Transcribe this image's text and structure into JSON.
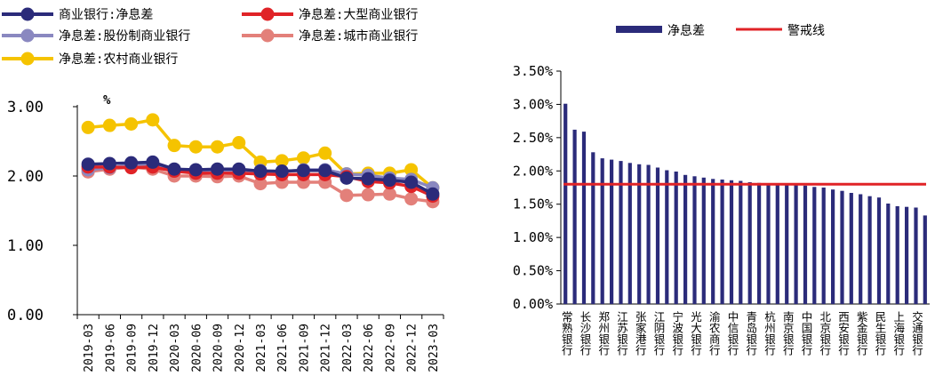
{
  "chart_data": [
    {
      "type": "line",
      "ylabel": "%",
      "ylim": [
        0,
        3
      ],
      "yticks": [
        "0.00",
        "1.00",
        "2.00",
        "3.00"
      ],
      "legend_position": "top",
      "grid": false,
      "x": [
        "2019-03",
        "2019-06",
        "2019-09",
        "2019-12",
        "2020-03",
        "2020-06",
        "2020-09",
        "2020-12",
        "2021-03",
        "2021-06",
        "2021-09",
        "2021-12",
        "2022-03",
        "2022-06",
        "2022-09",
        "2022-12",
        "2023-03"
      ],
      "series": [
        {
          "name": "商业银行:净息差",
          "color": "#2b2b7a",
          "values": [
            2.17,
            2.18,
            2.19,
            2.2,
            2.1,
            2.09,
            2.1,
            2.1,
            2.07,
            2.07,
            2.08,
            2.08,
            1.97,
            1.96,
            1.94,
            1.91,
            1.74
          ]
        },
        {
          "name": "净息差:大型商业银行",
          "color": "#e02327",
          "values": [
            2.13,
            2.13,
            2.12,
            2.13,
            2.07,
            2.04,
            2.04,
            2.04,
            2.03,
            2.02,
            2.02,
            2.02,
            1.99,
            1.92,
            1.9,
            1.85,
            1.71
          ]
        },
        {
          "name": "净息差:股份制商业银行",
          "color": "#8a88c0",
          "values": [
            2.09,
            2.12,
            2.15,
            2.16,
            2.09,
            2.07,
            2.08,
            2.07,
            2.08,
            2.06,
            2.09,
            2.09,
            2.03,
            2.01,
            1.97,
            1.95,
            1.83
          ]
        },
        {
          "name": "净息差:城市商业银行",
          "color": "#e3807a",
          "values": [
            2.06,
            2.1,
            2.13,
            2.1,
            2.0,
            2.0,
            1.99,
            2.0,
            1.89,
            1.91,
            1.91,
            1.91,
            1.72,
            1.73,
            1.74,
            1.67,
            1.63
          ]
        },
        {
          "name": "净息差:农村商业银行",
          "color": "#f5c300",
          "values": [
            2.7,
            2.73,
            2.75,
            2.81,
            2.44,
            2.42,
            2.42,
            2.48,
            2.2,
            2.22,
            2.26,
            2.33,
            2.03,
            2.04,
            2.04,
            2.09,
            1.83
          ]
        }
      ]
    },
    {
      "type": "bar",
      "ylim": [
        0,
        3.5
      ],
      "yticks": [
        "0.00%",
        "0.50%",
        "1.00%",
        "1.50%",
        "2.00%",
        "2.50%",
        "3.00%",
        "3.50%"
      ],
      "legend_position": "top",
      "grid": false,
      "series": [
        {
          "name": "净息差",
          "color": "#2b2b7a",
          "values": [
            3.01,
            2.62,
            2.59,
            2.28,
            2.19,
            2.17,
            2.15,
            2.12,
            2.1,
            2.09,
            2.05,
            2.01,
            1.99,
            1.94,
            1.92,
            1.9,
            1.88,
            1.87,
            1.86,
            1.85,
            1.83,
            1.82,
            1.8,
            1.8,
            1.8,
            1.79,
            1.78,
            1.76,
            1.75,
            1.72,
            1.7,
            1.67,
            1.65,
            1.62,
            1.6,
            1.51,
            1.47,
            1.46,
            1.45,
            1.33
          ]
        },
        {
          "name": "警戒线",
          "color": "#e02327",
          "type": "line",
          "value": 1.8
        }
      ],
      "categories": [
        "常熟银行",
        "",
        "长沙银行",
        "",
        "郑州银行",
        "",
        "江苏银行",
        "",
        "张家港行",
        "",
        "江阴银行",
        "",
        "宁波银行",
        "",
        "光大银行",
        "",
        "渝农商行",
        "",
        "中信银行",
        "",
        "青岛银行",
        "",
        "杭州银行",
        "",
        "南京银行",
        "",
        "中国银行",
        "",
        "北京银行",
        "",
        "西安银行",
        "",
        "紫金银行",
        "",
        "民生银行",
        "",
        "上海银行",
        "",
        "交通银行",
        ""
      ]
    }
  ]
}
